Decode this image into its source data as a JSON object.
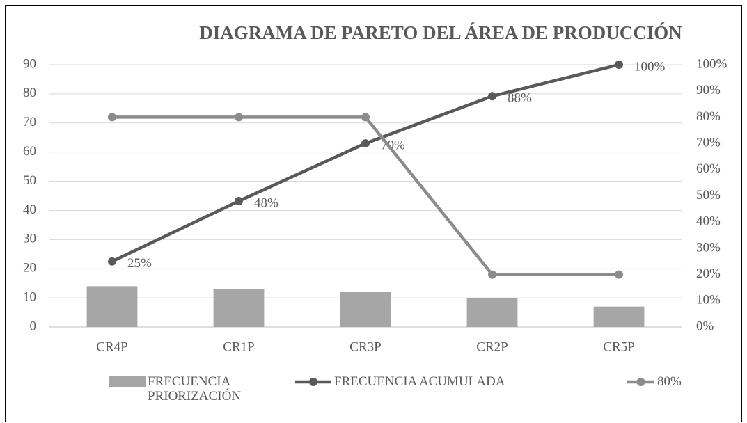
{
  "chart_data": {
    "type": "bar",
    "title": "DIAGRAMA DE PARETO DEL ÁREA DE PRODUCCIÓN",
    "categories": [
      "CR4P",
      "CR1P",
      "CR3P",
      "CR2P",
      "CR5P"
    ],
    "series": [
      {
        "name": "FRECUENCIA PRIORIZACIÓN",
        "type": "bar",
        "color": "#a6a6a6",
        "values": [
          14,
          13,
          12,
          10,
          7
        ]
      },
      {
        "name": "FRECUENCIA ACUMULADA",
        "type": "line",
        "axis": "y2",
        "color": "#595959",
        "values": [
          25,
          48,
          70,
          88,
          100
        ],
        "value_labels": [
          "25%",
          "48%",
          "70%",
          "88%",
          "100%"
        ]
      },
      {
        "name": "80%",
        "type": "line",
        "axis": "y2",
        "color": "#8c8c8c",
        "values": [
          80,
          80,
          80,
          20,
          20
        ]
      }
    ],
    "ylim": [
      0,
      90
    ],
    "yticks": [
      0,
      10,
      20,
      30,
      40,
      50,
      60,
      70,
      80,
      90
    ],
    "y2lim": [
      0,
      100
    ],
    "y2ticks": [
      {
        "value": 0,
        "label": "0%"
      },
      {
        "value": 10,
        "label": "10%"
      },
      {
        "value": 20,
        "label": "20%"
      },
      {
        "value": 30,
        "label": "30%"
      },
      {
        "value": 40,
        "label": "40%"
      },
      {
        "value": 50,
        "label": "50%"
      },
      {
        "value": 60,
        "label": "60%"
      },
      {
        "value": 70,
        "label": "70%"
      },
      {
        "value": 80,
        "label": "80%"
      },
      {
        "value": 90,
        "label": "90%"
      },
      {
        "value": 100,
        "label": "100%"
      }
    ],
    "grid": true,
    "legend": "bottom"
  }
}
